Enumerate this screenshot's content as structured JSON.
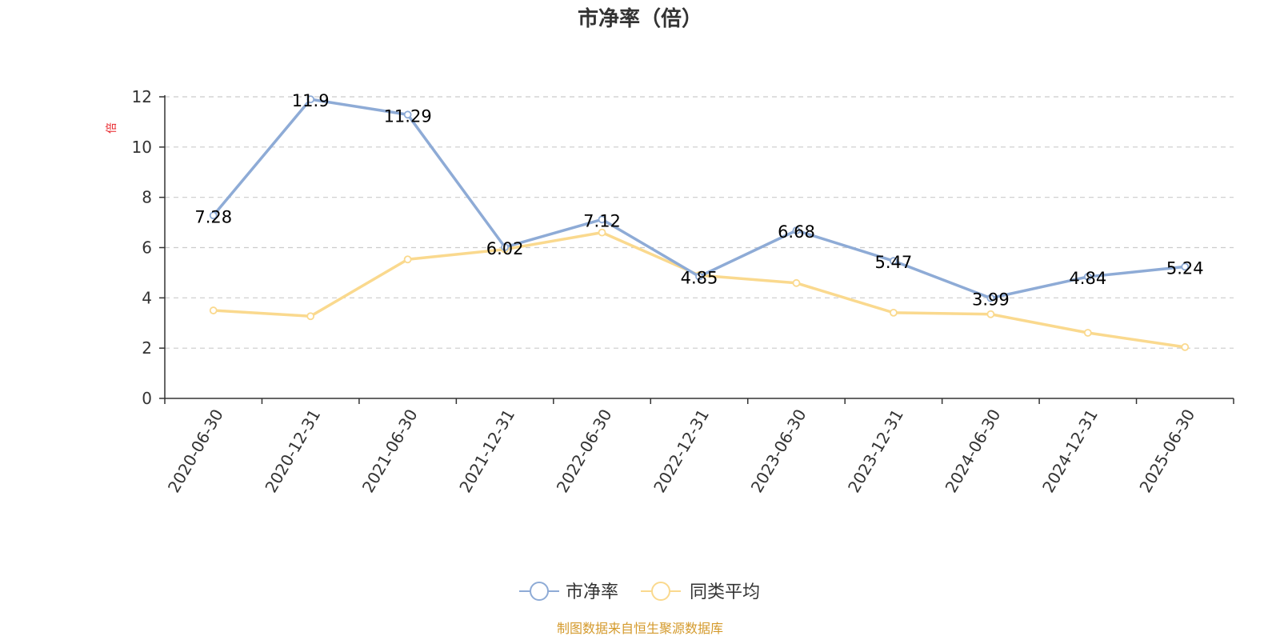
{
  "chart_data": {
    "type": "line",
    "title": "市净率（倍）",
    "ylabel": "倍",
    "xlabel": "",
    "categories": [
      "2020-06-30",
      "2020-12-31",
      "2021-06-30",
      "2021-12-31",
      "2022-06-30",
      "2022-12-31",
      "2023-06-30",
      "2023-12-31",
      "2024-06-30",
      "2024-12-31",
      "2025-06-30"
    ],
    "ylim": [
      0,
      12
    ],
    "yticks": [
      0,
      2,
      4,
      6,
      8,
      10,
      12
    ],
    "grid": true,
    "legend_position": "bottom",
    "series": [
      {
        "name": "市净率",
        "color": "#8eabd6",
        "values": [
          7.28,
          11.9,
          11.29,
          6.02,
          7.12,
          4.85,
          6.68,
          5.47,
          3.99,
          4.84,
          5.24
        ],
        "labels": [
          "7.28",
          "11.9",
          "11.29",
          "6.02",
          "7.12",
          "4.85",
          "6.68",
          "5.47",
          "3.99",
          "4.84",
          "5.24"
        ]
      },
      {
        "name": "同类平均",
        "color": "#fad98e",
        "values": [
          3.5,
          3.27,
          5.53,
          5.93,
          6.6,
          4.9,
          4.59,
          3.41,
          3.35,
          2.61,
          2.04
        ]
      }
    ]
  },
  "footer": {
    "source": "制图数据来自恒生聚源数据库"
  },
  "colors": {
    "unit_label": "#e8242a",
    "source_text": "#d49a2c",
    "axis": "#333333",
    "grid": "#cccccc"
  }
}
